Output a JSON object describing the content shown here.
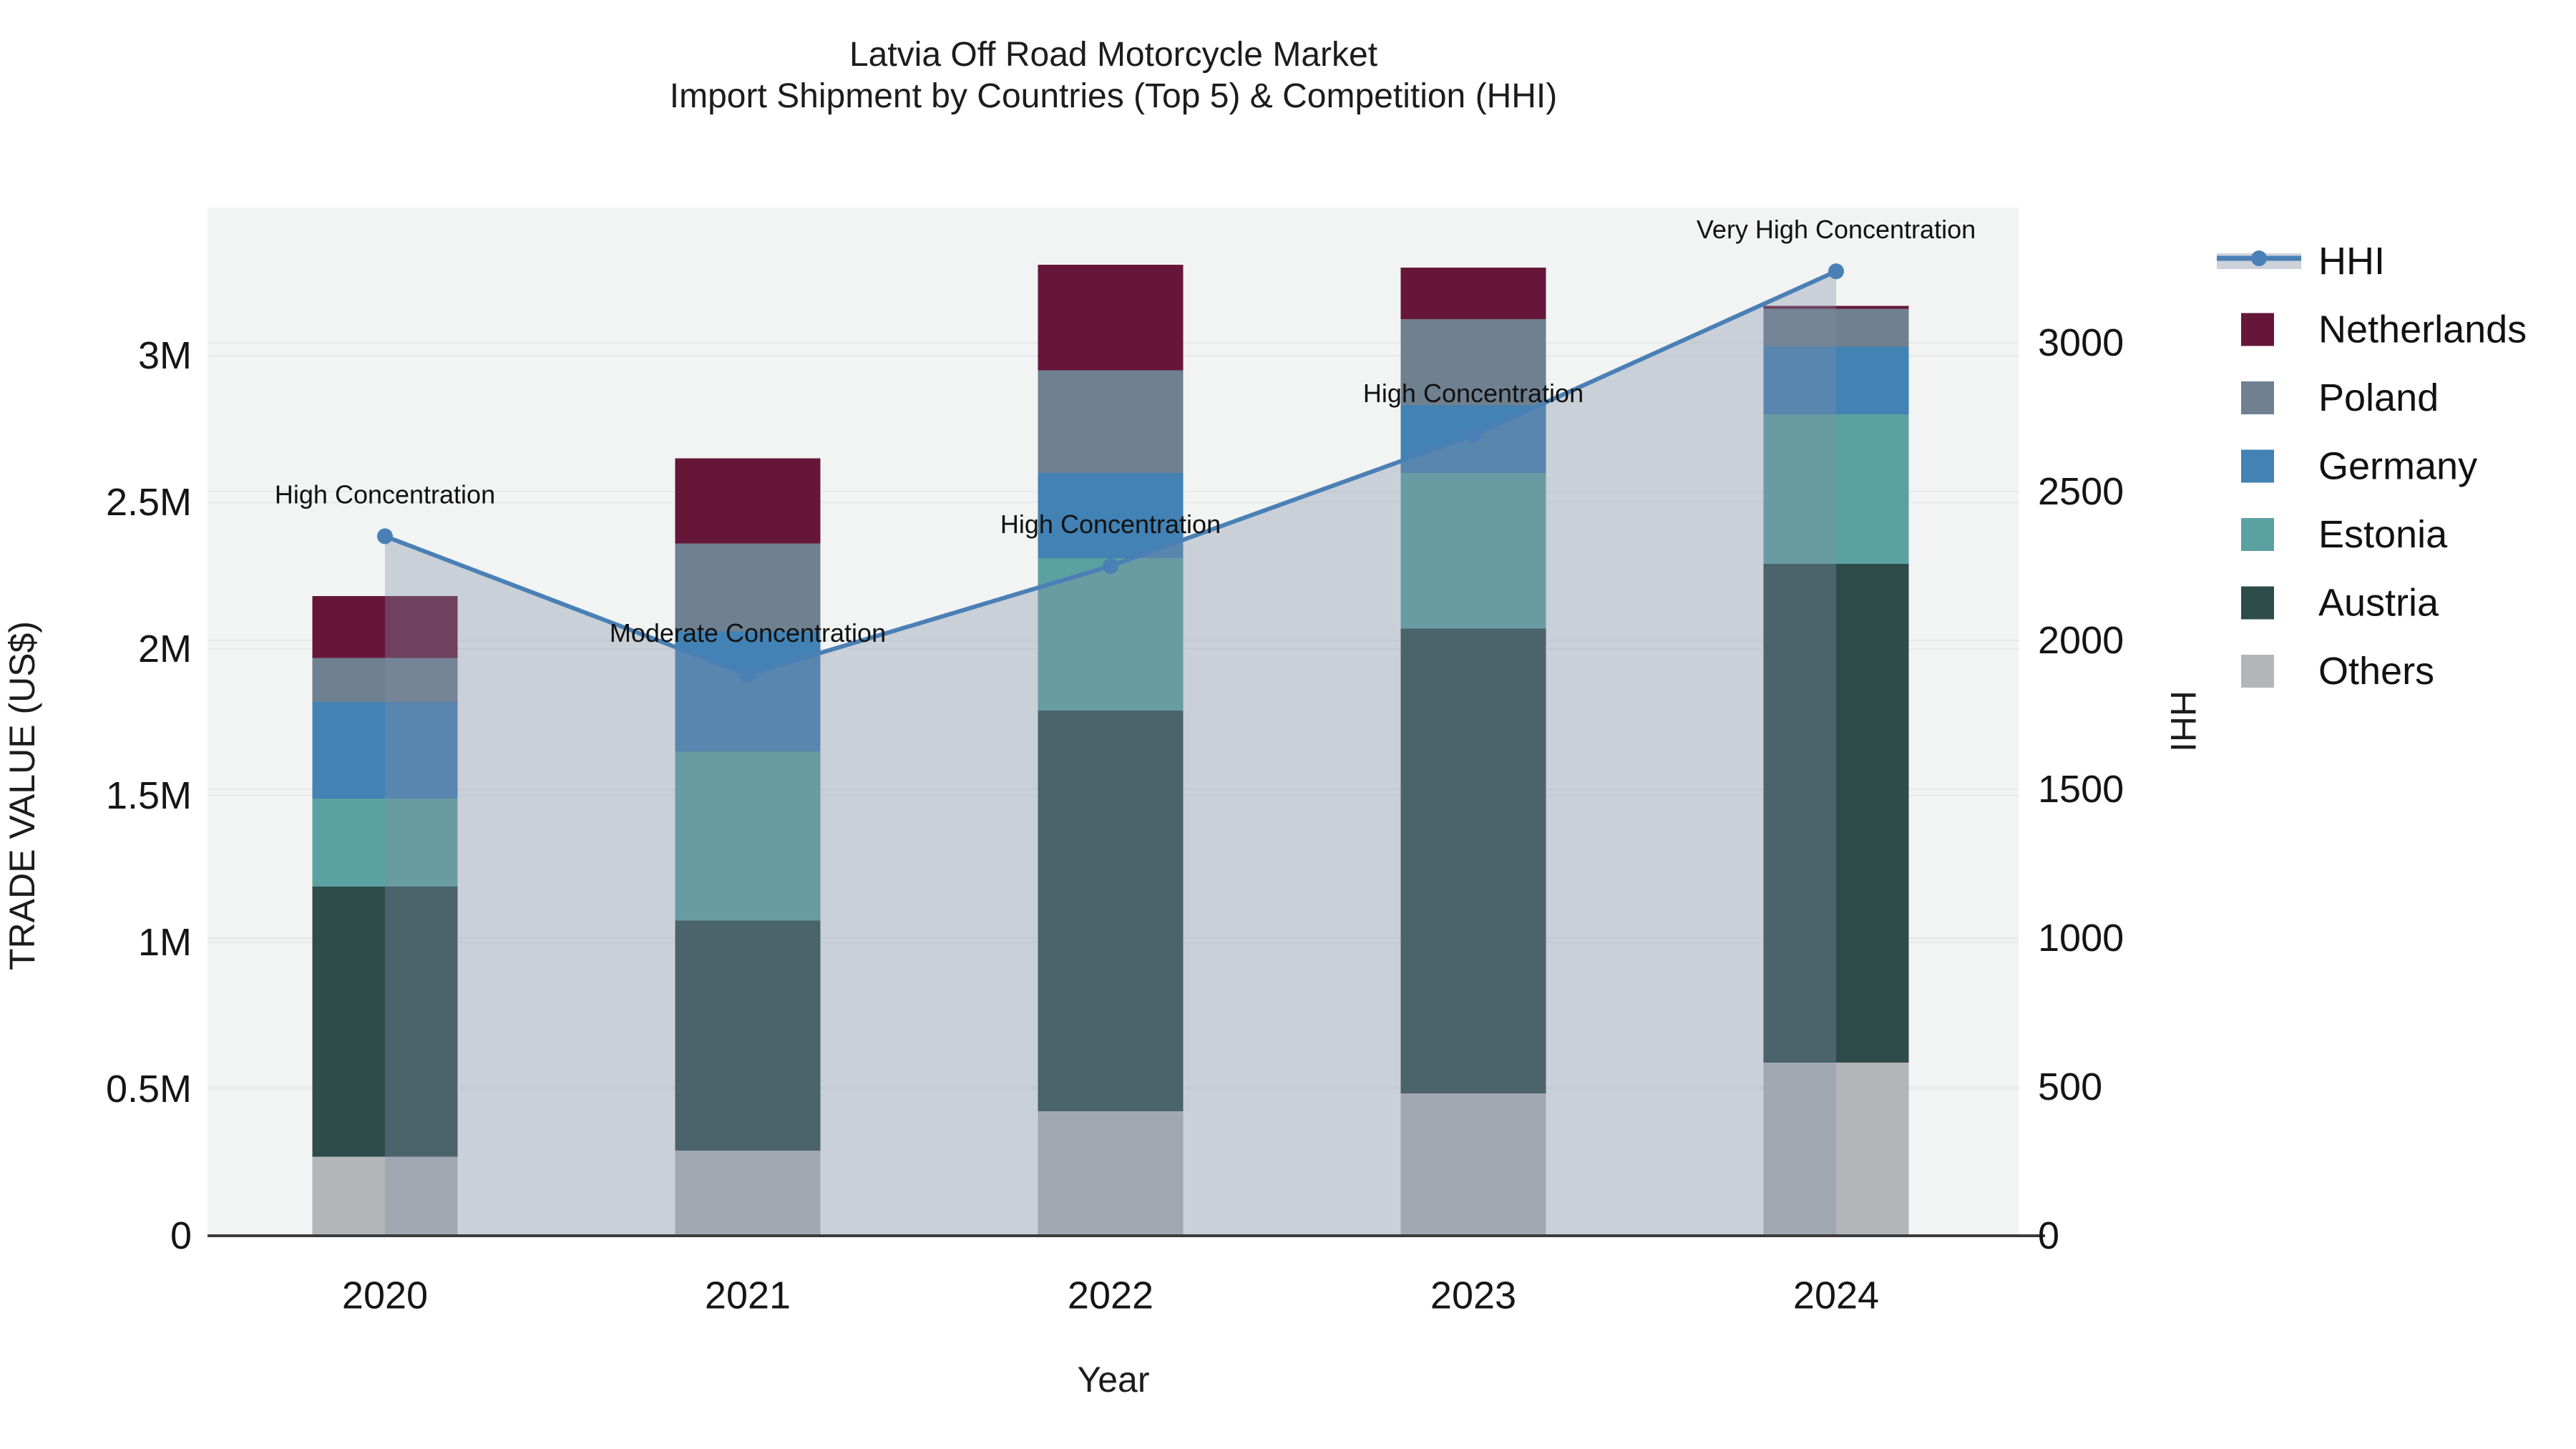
{
  "title": {
    "line1": "Latvia Off Road Motorcycle Market",
    "line2": "Import Shipment by Countries (Top 5) & Competition (HHI)"
  },
  "legend": {
    "items": [
      {
        "label": "HHI",
        "type": "line",
        "color": "#4a80b5",
        "band_color": "#ccd1da"
      },
      {
        "label": "Netherlands",
        "type": "box",
        "color": "#661739"
      },
      {
        "label": "Poland",
        "type": "box",
        "color": "#6f8090"
      },
      {
        "label": "Germany",
        "type": "box",
        "color": "#4282b4"
      },
      {
        "label": "Estonia",
        "type": "box",
        "color": "#5ca1a1"
      },
      {
        "label": "Austria",
        "type": "box",
        "color": "#2e4c4a"
      },
      {
        "label": "Others",
        "type": "box",
        "color": "#b3b6b8"
      }
    ]
  },
  "chart_data": {
    "type": "combo: stacked-bar + line (dual axis)",
    "categories": [
      "2020",
      "2021",
      "2022",
      "2023",
      "2024"
    ],
    "unit": "US$",
    "series": [
      {
        "name": "Netherlands",
        "color": "#661739",
        "values": [
          210000,
          290000,
          360000,
          175000,
          10000
        ]
      },
      {
        "name": "Poland",
        "color": "#6f8090",
        "values": [
          150000,
          300000,
          350000,
          295000,
          130000
        ]
      },
      {
        "name": "Germany",
        "color": "#4282b4",
        "values": [
          330000,
          410000,
          290000,
          230000,
          230000
        ]
      },
      {
        "name": "Estonia",
        "color": "#5ca1a1",
        "values": [
          300000,
          575000,
          520000,
          530000,
          510000
        ]
      },
      {
        "name": "Austria",
        "color": "#2e4c4a",
        "values": [
          920000,
          785000,
          1365000,
          1585000,
          1700000
        ]
      },
      {
        "name": "Others",
        "color": "#b3b6b8",
        "values": [
          270000,
          290000,
          425000,
          485000,
          590000
        ]
      }
    ],
    "stack_order_bottom_to_top": [
      "Others",
      "Austria",
      "Estonia",
      "Germany",
      "Poland",
      "Netherlands"
    ],
    "line": {
      "name": "HHI",
      "color": "#4a80b5",
      "area_fill": "rgba(130,142,165,0.35)",
      "values": [
        2350,
        1885,
        2250,
        2690,
        3240
      ]
    },
    "annotations": [
      {
        "category": "2020",
        "text": "High Concentration"
      },
      {
        "category": "2021",
        "text": "Moderate Concentration"
      },
      {
        "category": "2022",
        "text": "High Concentration"
      },
      {
        "category": "2023",
        "text": "High Concentration"
      },
      {
        "category": "2024",
        "text": "Very High Concentration"
      }
    ],
    "y_left": {
      "title": "TRADE VALUE (US$)",
      "tick_labels": [
        "0",
        "0.5M",
        "1M",
        "1.5M",
        "2M",
        "2.5M",
        "3M"
      ],
      "tick_values": [
        0,
        500000,
        1000000,
        1500000,
        2000000,
        2500000,
        3000000
      ],
      "range": [
        0,
        3505000
      ],
      "grid": true
    },
    "y_right": {
      "title": "HHI",
      "tick_labels": [
        "0",
        "500",
        "1000",
        "1500",
        "2000",
        "2500",
        "3000"
      ],
      "tick_values": [
        0,
        500,
        1000,
        1500,
        2000,
        2500,
        3000
      ],
      "range": [
        0,
        3455
      ],
      "grid": true
    },
    "x": {
      "title": "Year"
    },
    "legend_position": "right-outside"
  }
}
